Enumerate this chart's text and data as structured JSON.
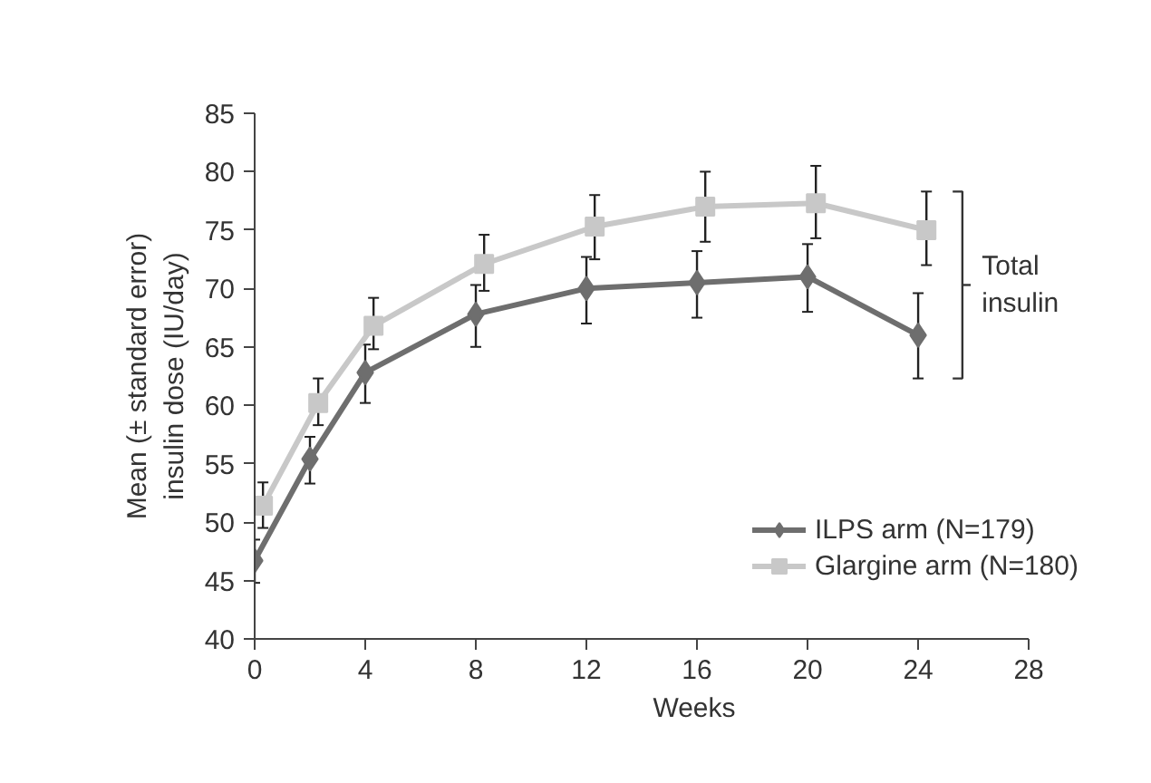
{
  "chart_data": {
    "type": "line",
    "xlabel": "Weeks",
    "ylabel": "Mean (± standard error)\ninsulin dose (IU/day)",
    "xlim": [
      0,
      28
    ],
    "xticks": [
      0,
      4,
      8,
      12,
      16,
      20,
      24,
      28
    ],
    "ylim": [
      40,
      85
    ],
    "yticks": [
      40,
      45,
      50,
      55,
      60,
      65,
      70,
      75,
      80,
      85
    ],
    "grid": false,
    "legend": "bottom right",
    "line_style": "solid",
    "annotations": [
      "Total\ninsulin"
    ],
    "series": [
      {
        "name": "ILPS arm (N=179)",
        "color": "#6e6e6e",
        "marker": "diamond",
        "x": [
          0,
          2,
          4,
          8,
          12,
          16,
          20,
          24
        ],
        "values": [
          46.7,
          55.4,
          62.8,
          67.8,
          70.0,
          70.5,
          71.0,
          66.0
        ],
        "errors": [
          [
            44.8,
            48.5
          ],
          [
            53.3,
            57.3
          ],
          [
            60.2,
            65.2
          ],
          [
            65.0,
            70.3
          ],
          [
            67.0,
            72.7
          ],
          [
            67.5,
            73.2
          ],
          [
            68.0,
            73.8
          ],
          [
            62.3,
            69.6
          ]
        ]
      },
      {
        "name": "Glargine arm (N=180)",
        "color": "#c8c8c8",
        "marker": "square",
        "x": [
          0.3,
          2.3,
          4.3,
          8.3,
          12.3,
          16.3,
          20.3,
          24.3
        ],
        "values": [
          51.4,
          60.2,
          66.8,
          72.1,
          75.3,
          77.0,
          77.3,
          75.0
        ],
        "errors": [
          [
            49.5,
            53.4
          ],
          [
            58.3,
            62.3
          ],
          [
            64.8,
            69.2
          ],
          [
            69.8,
            74.6
          ],
          [
            72.5,
            78.0
          ],
          [
            74.0,
            80.0
          ],
          [
            74.3,
            80.5
          ],
          [
            72.0,
            78.3
          ]
        ]
      }
    ]
  }
}
